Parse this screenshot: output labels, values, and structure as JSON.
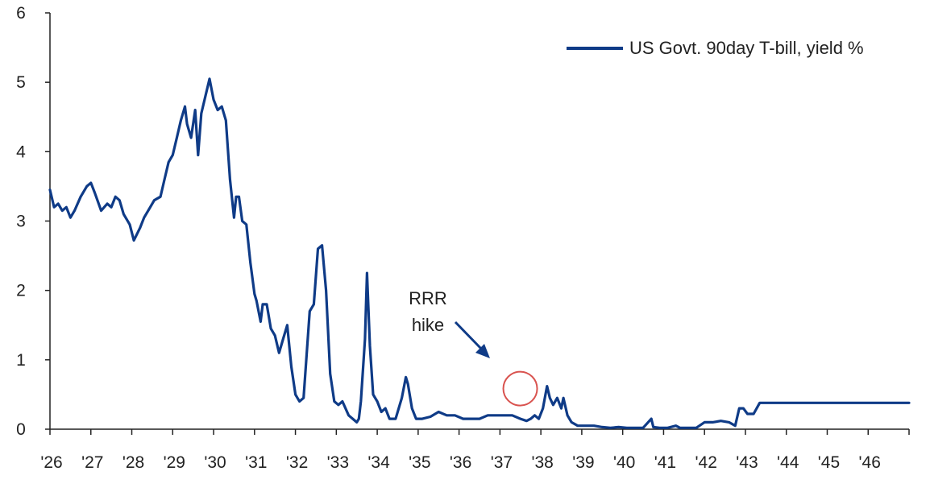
{
  "chart_data": {
    "type": "line",
    "title": "",
    "xlabel": "",
    "ylabel": "",
    "ylim": [
      0,
      6
    ],
    "yticks": [
      "0",
      "1",
      "2",
      "3",
      "4",
      "5",
      "6"
    ],
    "xticks": [
      "'26",
      "'27",
      "'28",
      "'29",
      "'30",
      "'31",
      "'32",
      "'33",
      "'34",
      "'35",
      "'36",
      "'37",
      "'38",
      "'39",
      "'40",
      "'41",
      "'42",
      "'43",
      "'44",
      "'45",
      "'46"
    ],
    "xlim": [
      1926,
      1947
    ],
    "grid": false,
    "legend": {
      "position": "top-right",
      "entries": [
        "US Govt. 90day T-bill, yield %"
      ]
    },
    "colors": {
      "series": "#0f3b87",
      "annotation_circle": "#d9534f",
      "axis": "#222222"
    },
    "annotation": {
      "line1": "RRR",
      "line2": "hike",
      "x": 1937.2,
      "y": 0.55
    },
    "series": [
      {
        "name": "US Govt. 90day T-bill, yield %",
        "points": [
          [
            1926.0,
            3.45
          ],
          [
            1926.1,
            3.2
          ],
          [
            1926.2,
            3.25
          ],
          [
            1926.3,
            3.15
          ],
          [
            1926.4,
            3.2
          ],
          [
            1926.5,
            3.05
          ],
          [
            1926.6,
            3.15
          ],
          [
            1926.75,
            3.35
          ],
          [
            1926.9,
            3.5
          ],
          [
            1927.0,
            3.55
          ],
          [
            1927.1,
            3.4
          ],
          [
            1927.25,
            3.15
          ],
          [
            1927.4,
            3.25
          ],
          [
            1927.5,
            3.2
          ],
          [
            1927.6,
            3.35
          ],
          [
            1927.7,
            3.3
          ],
          [
            1927.8,
            3.1
          ],
          [
            1927.95,
            2.95
          ],
          [
            1928.05,
            2.72
          ],
          [
            1928.2,
            2.9
          ],
          [
            1928.3,
            3.05
          ],
          [
            1928.45,
            3.2
          ],
          [
            1928.55,
            3.3
          ],
          [
            1928.7,
            3.35
          ],
          [
            1928.8,
            3.6
          ],
          [
            1928.9,
            3.85
          ],
          [
            1929.0,
            3.95
          ],
          [
            1929.1,
            4.2
          ],
          [
            1929.2,
            4.45
          ],
          [
            1929.3,
            4.65
          ],
          [
            1929.35,
            4.4
          ],
          [
            1929.45,
            4.2
          ],
          [
            1929.55,
            4.6
          ],
          [
            1929.62,
            3.95
          ],
          [
            1929.7,
            4.55
          ],
          [
            1929.8,
            4.8
          ],
          [
            1929.9,
            5.05
          ],
          [
            1930.0,
            4.75
          ],
          [
            1930.1,
            4.6
          ],
          [
            1930.2,
            4.65
          ],
          [
            1930.3,
            4.45
          ],
          [
            1930.4,
            3.6
          ],
          [
            1930.5,
            3.05
          ],
          [
            1930.55,
            3.35
          ],
          [
            1930.62,
            3.35
          ],
          [
            1930.7,
            3.0
          ],
          [
            1930.8,
            2.95
          ],
          [
            1930.9,
            2.4
          ],
          [
            1931.0,
            1.95
          ],
          [
            1931.05,
            1.85
          ],
          [
            1931.15,
            1.55
          ],
          [
            1931.2,
            1.8
          ],
          [
            1931.3,
            1.8
          ],
          [
            1931.4,
            1.45
          ],
          [
            1931.5,
            1.35
          ],
          [
            1931.6,
            1.1
          ],
          [
            1931.7,
            1.3
          ],
          [
            1931.8,
            1.5
          ],
          [
            1931.9,
            0.9
          ],
          [
            1932.0,
            0.5
          ],
          [
            1932.1,
            0.4
          ],
          [
            1932.2,
            0.45
          ],
          [
            1932.35,
            1.7
          ],
          [
            1932.45,
            1.8
          ],
          [
            1932.55,
            2.6
          ],
          [
            1932.65,
            2.65
          ],
          [
            1932.75,
            2.0
          ],
          [
            1932.85,
            0.8
          ],
          [
            1932.95,
            0.4
          ],
          [
            1933.05,
            0.35
          ],
          [
            1933.15,
            0.4
          ],
          [
            1933.3,
            0.2
          ],
          [
            1933.5,
            0.1
          ],
          [
            1933.55,
            0.15
          ],
          [
            1933.6,
            0.4
          ],
          [
            1933.7,
            1.3
          ],
          [
            1933.75,
            2.25
          ],
          [
            1933.82,
            1.2
          ],
          [
            1933.9,
            0.5
          ],
          [
            1934.0,
            0.4
          ],
          [
            1934.1,
            0.25
          ],
          [
            1934.2,
            0.3
          ],
          [
            1934.3,
            0.15
          ],
          [
            1934.45,
            0.15
          ],
          [
            1934.6,
            0.45
          ],
          [
            1934.7,
            0.75
          ],
          [
            1934.75,
            0.65
          ],
          [
            1934.85,
            0.3
          ],
          [
            1934.95,
            0.15
          ],
          [
            1935.1,
            0.15
          ],
          [
            1935.3,
            0.18
          ],
          [
            1935.5,
            0.25
          ],
          [
            1935.7,
            0.2
          ],
          [
            1935.9,
            0.2
          ],
          [
            1936.1,
            0.15
          ],
          [
            1936.3,
            0.15
          ],
          [
            1936.5,
            0.15
          ],
          [
            1936.7,
            0.2
          ],
          [
            1936.9,
            0.2
          ],
          [
            1937.1,
            0.2
          ],
          [
            1937.3,
            0.2
          ],
          [
            1937.5,
            0.15
          ],
          [
            1937.65,
            0.12
          ],
          [
            1937.75,
            0.15
          ],
          [
            1937.85,
            0.2
          ],
          [
            1937.95,
            0.15
          ],
          [
            1938.05,
            0.3
          ],
          [
            1938.15,
            0.62
          ],
          [
            1938.22,
            0.45
          ],
          [
            1938.3,
            0.35
          ],
          [
            1938.4,
            0.45
          ],
          [
            1938.5,
            0.3
          ],
          [
            1938.55,
            0.45
          ],
          [
            1938.65,
            0.2
          ],
          [
            1938.75,
            0.1
          ],
          [
            1938.9,
            0.05
          ],
          [
            1939.1,
            0.05
          ],
          [
            1939.3,
            0.05
          ],
          [
            1939.5,
            0.03
          ],
          [
            1939.7,
            0.02
          ],
          [
            1939.9,
            0.03
          ],
          [
            1940.1,
            0.02
          ],
          [
            1940.3,
            0.02
          ],
          [
            1940.5,
            0.02
          ],
          [
            1940.7,
            0.15
          ],
          [
            1940.75,
            0.03
          ],
          [
            1940.9,
            0.02
          ],
          [
            1941.1,
            0.02
          ],
          [
            1941.3,
            0.05
          ],
          [
            1941.4,
            0.02
          ],
          [
            1941.6,
            0.02
          ],
          [
            1941.8,
            0.02
          ],
          [
            1942.0,
            0.1
          ],
          [
            1942.2,
            0.1
          ],
          [
            1942.4,
            0.12
          ],
          [
            1942.6,
            0.1
          ],
          [
            1942.75,
            0.05
          ],
          [
            1942.85,
            0.3
          ],
          [
            1942.95,
            0.3
          ],
          [
            1943.05,
            0.22
          ],
          [
            1943.2,
            0.22
          ],
          [
            1943.35,
            0.38
          ],
          [
            1944.0,
            0.38
          ],
          [
            1945.0,
            0.38
          ],
          [
            1946.0,
            0.38
          ],
          [
            1947.0,
            0.38
          ]
        ]
      }
    ]
  }
}
